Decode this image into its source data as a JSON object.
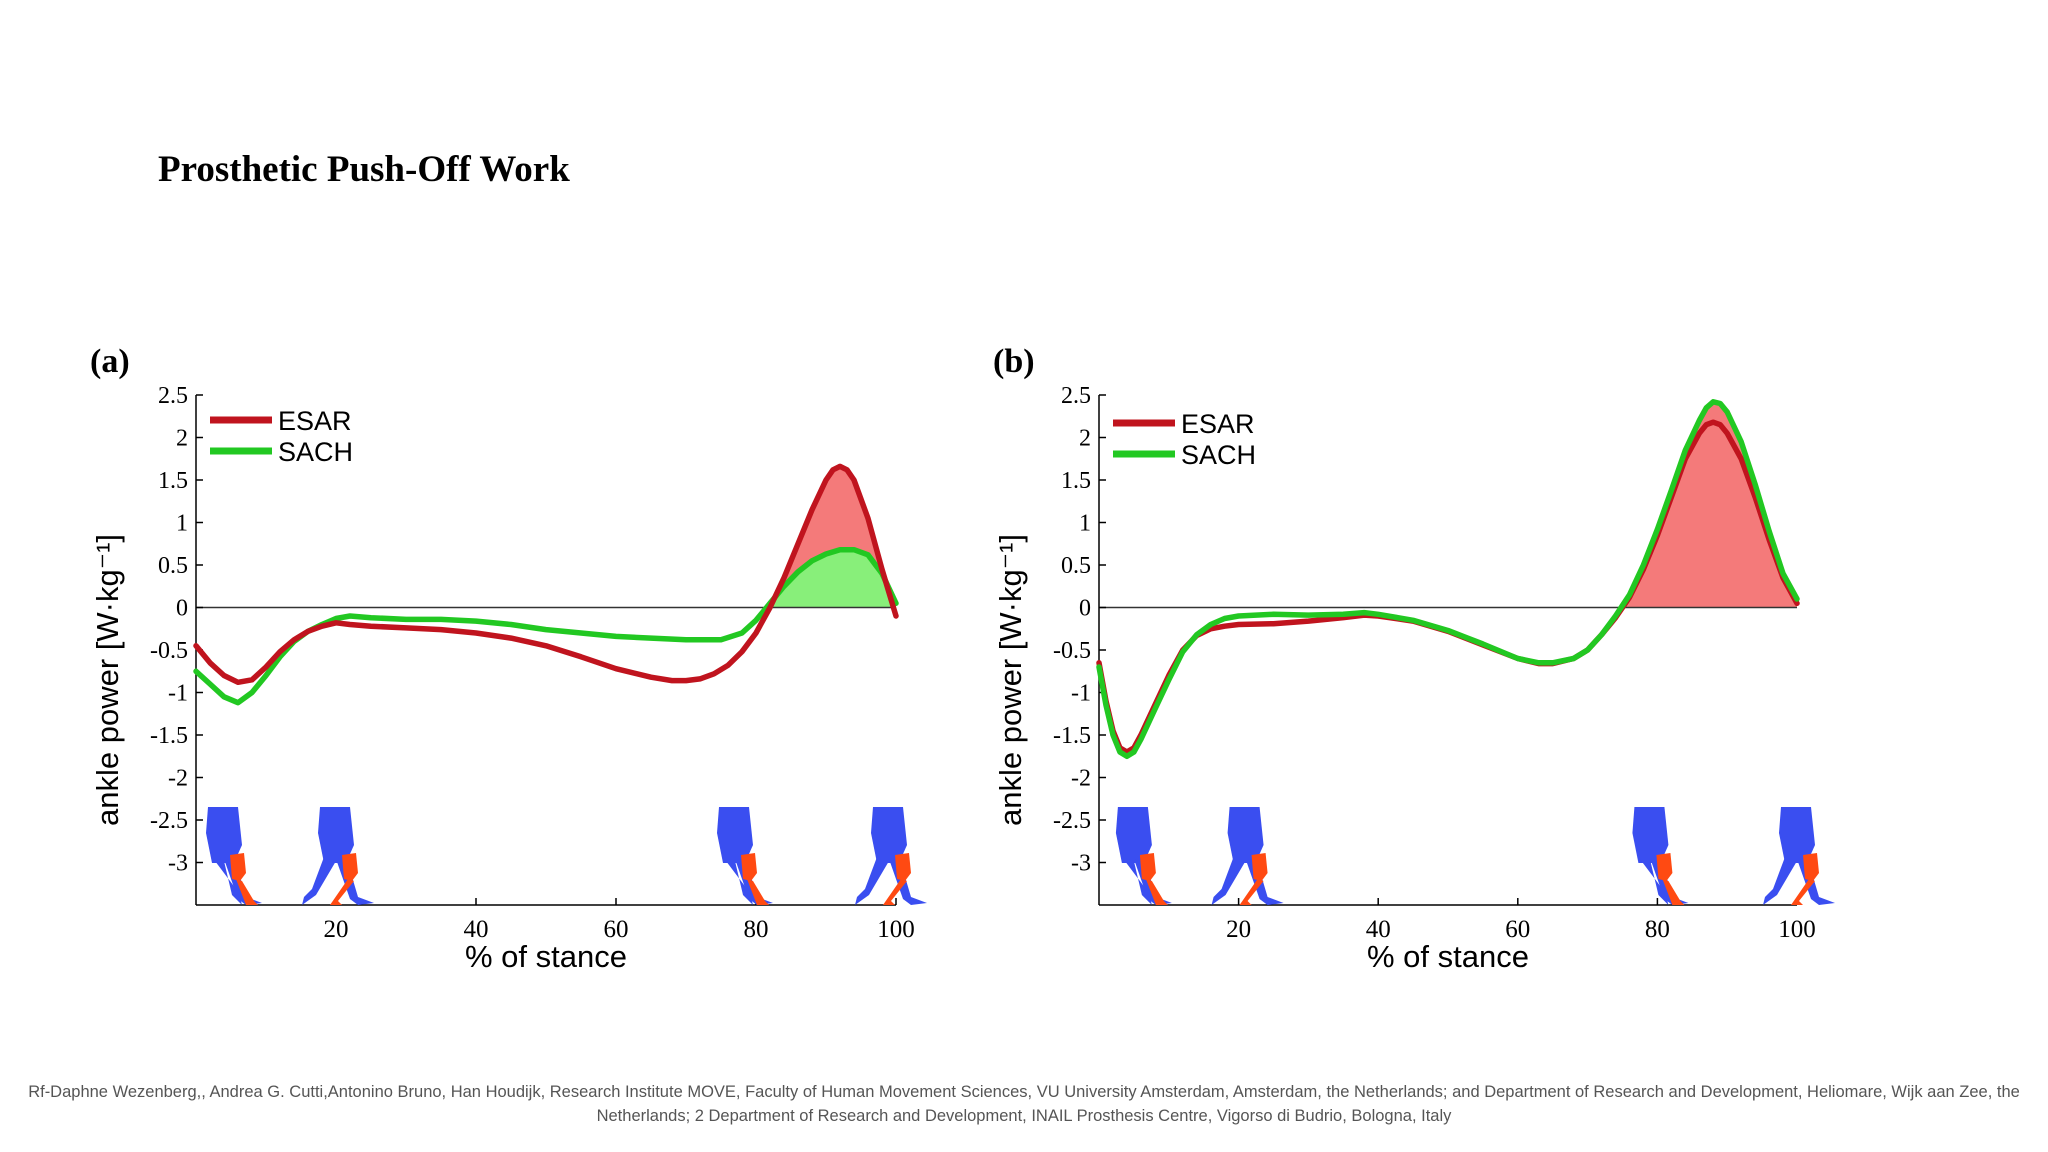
{
  "slide": {
    "title": "Prosthetic Push-Off Work",
    "citation": "Rf-Daphne Wezenberg,, Andrea G. Cutti,Antonino Bruno, Han Houdijk, Research Institute MOVE, Faculty of Human Movement Sciences, VU University Amsterdam, Amsterdam, the Netherlands; and Department of Research and Development, Heliomare, Wijk aan Zee, the Netherlands; 2 Department of Research and Development, INAIL Prosthesis Centre, Vigorso di Budrio, Bologna, Italy"
  },
  "colors": {
    "esar": "#c0141e",
    "sach": "#22c822",
    "esar_fill": "#f47a7a",
    "sach_fill": "#88ef7a",
    "body_limb": "#3a4ef0",
    "prosthetic_limb": "#ff4a12"
  },
  "chart_data": [
    {
      "type": "line",
      "panel_label": "(a)",
      "xlabel": "% of stance",
      "ylabel": "ankle power [W·kg⁻¹]",
      "xlim": [
        0,
        100
      ],
      "ylim": [
        -3.5,
        2.5
      ],
      "xticks": [
        20,
        40,
        60,
        80,
        100
      ],
      "yticks": [
        2.5,
        2,
        1.5,
        1,
        0.5,
        0,
        -0.5,
        -1,
        -1.5,
        -2,
        -2.5,
        -3
      ],
      "ytick_labels": [
        "2.5",
        "2",
        "1.5",
        "1",
        "0.5",
        "0",
        "-0.5",
        "-1",
        "-1.5",
        "-2",
        "-2.5",
        "-3"
      ],
      "legend": {
        "position": "top-left",
        "entries": [
          "ESAR",
          "SACH"
        ]
      },
      "series": [
        {
          "name": "ESAR",
          "x": [
            0,
            2,
            4,
            6,
            8,
            10,
            12,
            14,
            16,
            18,
            20,
            22,
            25,
            30,
            35,
            40,
            45,
            50,
            55,
            60,
            65,
            68,
            70,
            72,
            74,
            76,
            78,
            80,
            82,
            84,
            86,
            88,
            90,
            91,
            92,
            93,
            94,
            96,
            98,
            100
          ],
          "y": [
            -0.45,
            -0.65,
            -0.8,
            -0.88,
            -0.85,
            -0.7,
            -0.52,
            -0.38,
            -0.28,
            -0.22,
            -0.18,
            -0.2,
            -0.22,
            -0.24,
            -0.26,
            -0.3,
            -0.36,
            -0.45,
            -0.58,
            -0.72,
            -0.82,
            -0.86,
            -0.86,
            -0.84,
            -0.78,
            -0.68,
            -0.52,
            -0.3,
            0.0,
            0.35,
            0.75,
            1.15,
            1.5,
            1.62,
            1.66,
            1.62,
            1.5,
            1.05,
            0.45,
            -0.1
          ]
        },
        {
          "name": "SACH",
          "x": [
            0,
            2,
            4,
            6,
            8,
            10,
            12,
            14,
            16,
            18,
            20,
            22,
            25,
            30,
            35,
            40,
            45,
            50,
            55,
            60,
            65,
            70,
            75,
            78,
            80,
            82,
            84,
            86,
            88,
            90,
            92,
            94,
            96,
            98,
            100
          ],
          "y": [
            -0.75,
            -0.9,
            -1.05,
            -1.12,
            -1.0,
            -0.8,
            -0.58,
            -0.4,
            -0.28,
            -0.2,
            -0.13,
            -0.1,
            -0.12,
            -0.14,
            -0.14,
            -0.16,
            -0.2,
            -0.26,
            -0.3,
            -0.34,
            -0.36,
            -0.38,
            -0.38,
            -0.3,
            -0.15,
            0.05,
            0.25,
            0.42,
            0.55,
            0.63,
            0.68,
            0.68,
            0.62,
            0.4,
            0.05
          ]
        }
      ]
    },
    {
      "type": "line",
      "panel_label": "(b)",
      "xlabel": "% of stance",
      "ylabel": "ankle power [W·kg⁻¹]",
      "xlim": [
        0,
        100
      ],
      "ylim": [
        -3.5,
        2.5
      ],
      "xticks": [
        20,
        40,
        60,
        80,
        100
      ],
      "yticks": [
        2.5,
        2,
        1.5,
        1,
        0.5,
        0,
        -0.5,
        -1,
        -1.5,
        -2,
        -2.5,
        -3
      ],
      "ytick_labels": [
        "2.5",
        "2",
        "1.5",
        "1",
        "0.5",
        "0",
        "-0.5",
        "-1",
        "-1.5",
        "-2",
        "-2.5",
        "-3"
      ],
      "legend": {
        "position": "top-left",
        "entries": [
          "ESAR",
          "SACH"
        ]
      },
      "series": [
        {
          "name": "ESAR",
          "x": [
            0,
            1,
            2,
            3,
            4,
            5,
            6,
            8,
            10,
            12,
            14,
            16,
            18,
            20,
            25,
            30,
            35,
            38,
            40,
            45,
            50,
            55,
            60,
            63,
            65,
            68,
            70,
            72,
            74,
            76,
            78,
            80,
            82,
            84,
            86,
            87,
            88,
            89,
            90,
            92,
            94,
            96,
            98,
            100
          ],
          "y": [
            -0.65,
            -1.1,
            -1.45,
            -1.65,
            -1.7,
            -1.65,
            -1.5,
            -1.15,
            -0.8,
            -0.5,
            -0.33,
            -0.25,
            -0.22,
            -0.2,
            -0.19,
            -0.16,
            -0.12,
            -0.09,
            -0.1,
            -0.16,
            -0.28,
            -0.44,
            -0.6,
            -0.66,
            -0.66,
            -0.6,
            -0.5,
            -0.32,
            -0.12,
            0.12,
            0.45,
            0.85,
            1.3,
            1.75,
            2.05,
            2.15,
            2.18,
            2.15,
            2.05,
            1.75,
            1.3,
            0.8,
            0.35,
            0.05
          ]
        },
        {
          "name": "SACH",
          "x": [
            0,
            1,
            2,
            3,
            4,
            5,
            6,
            8,
            10,
            12,
            14,
            16,
            18,
            20,
            25,
            30,
            35,
            38,
            40,
            45,
            50,
            55,
            60,
            63,
            65,
            68,
            70,
            72,
            74,
            76,
            78,
            80,
            82,
            84,
            86,
            87,
            88,
            89,
            90,
            92,
            94,
            96,
            98,
            100
          ],
          "y": [
            -0.7,
            -1.15,
            -1.5,
            -1.7,
            -1.75,
            -1.7,
            -1.55,
            -1.2,
            -0.85,
            -0.52,
            -0.32,
            -0.2,
            -0.13,
            -0.1,
            -0.08,
            -0.09,
            -0.08,
            -0.06,
            -0.08,
            -0.15,
            -0.27,
            -0.43,
            -0.6,
            -0.65,
            -0.65,
            -0.6,
            -0.5,
            -0.32,
            -0.1,
            0.15,
            0.5,
            0.92,
            1.38,
            1.85,
            2.2,
            2.35,
            2.42,
            2.4,
            2.3,
            1.95,
            1.45,
            0.9,
            0.4,
            0.1
          ]
        }
      ]
    }
  ]
}
